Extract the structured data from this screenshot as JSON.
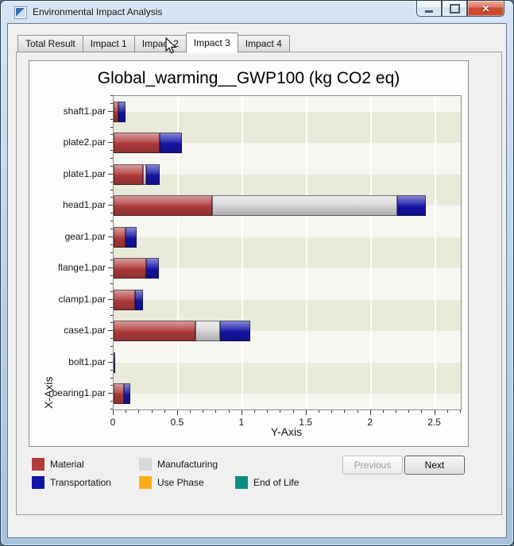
{
  "window": {
    "title": "Environmental Impact Analysis",
    "controls": [
      {
        "name": "minimize"
      },
      {
        "name": "maximize"
      },
      {
        "name": "close",
        "glyph": "✕"
      }
    ]
  },
  "tabs": [
    {
      "label": "Total Result",
      "active": false
    },
    {
      "label": "Impact 1",
      "active": false
    },
    {
      "label": "Impact 2",
      "active": false
    },
    {
      "label": "Impact 3",
      "active": true
    },
    {
      "label": "Impact 4",
      "active": false
    }
  ],
  "chart_data": {
    "type": "bar",
    "orientation": "horizontal",
    "stacked": true,
    "title": "Global_warming__GWP100 (kg CO2 eq)",
    "category_axis_label": "X-Axis",
    "value_axis_label": "Y-Axis",
    "categories": [
      "shaft1.par",
      "plate2.par",
      "plate1.par",
      "head1.par",
      "gear1.par",
      "flange1.par",
      "clamp1.par",
      "case1.par",
      "bolt1.par",
      "bearing1.par"
    ],
    "series": [
      {
        "name": "Material",
        "color": "#b13c3c",
        "values": [
          0.04,
          0.36,
          0.23,
          0.765,
          0.09,
          0.255,
          0.165,
          0.635,
          0.006,
          0.08
        ]
      },
      {
        "name": "Manufacturing",
        "color": "#d8d8d8",
        "values": [
          0,
          0,
          0.025,
          1.44,
          0,
          0,
          0,
          0.19,
          0,
          0
        ]
      },
      {
        "name": "Transportation",
        "color": "#1414a8",
        "values": [
          0.05,
          0.17,
          0.105,
          0.225,
          0.09,
          0.095,
          0.065,
          0.235,
          0.008,
          0.05
        ]
      },
      {
        "name": "Use Phase",
        "color": "#ffab17",
        "values": [
          0,
          0,
          0,
          0,
          0,
          0,
          0,
          0,
          0,
          0
        ]
      },
      {
        "name": "End of Life",
        "color": "#0f8a80",
        "values": [
          0,
          0,
          0,
          0,
          0,
          0,
          0,
          0,
          0,
          0
        ]
      }
    ],
    "value_ticks": [
      0,
      0.5,
      1,
      1.5,
      2,
      2.5
    ],
    "value_axis_max": 2.7,
    "value_minor_tick_step": 0.1,
    "grid": true,
    "legend_position": "bottom"
  },
  "footer": {
    "previous_label": "Previous",
    "next_label": "Next",
    "previous_enabled": false
  }
}
